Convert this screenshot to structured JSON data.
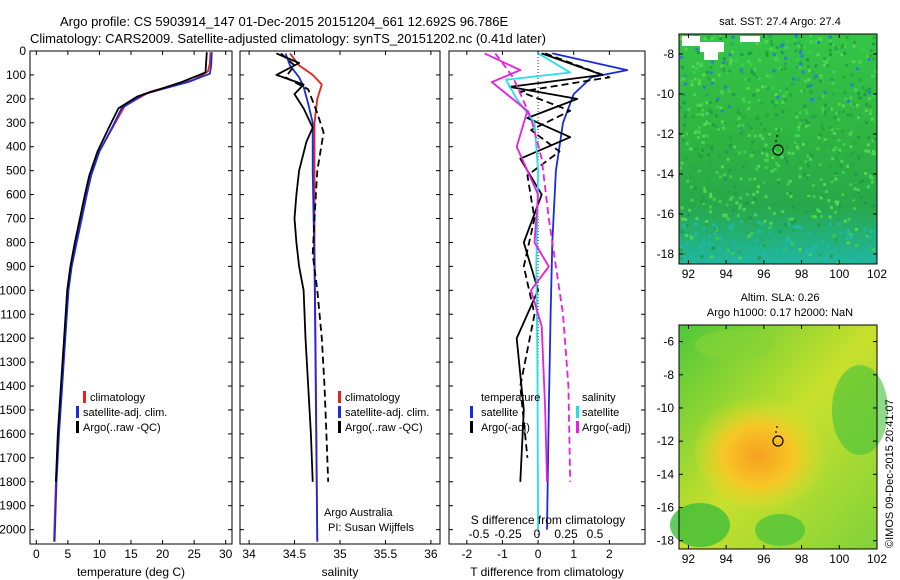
{
  "header": {
    "line1": "Argo profile: CS 5903914_147 01-Dec-2015 20151204_661 12.692S 96.786E",
    "line2": "Climatology: CARS2009. Satellite-adjusted climatology: synTS_20151202.nc (0.41d later)"
  },
  "colors": {
    "climatology": "#e8211b",
    "satellite": "#1a2bdb",
    "argo": "#000000",
    "satellite_s": "#22e0e8",
    "argo_s": "#e81ee0"
  },
  "depth_axis": {
    "ticks": [
      "0",
      "100",
      "200",
      "300",
      "400",
      "500",
      "600",
      "700",
      "800",
      "900",
      "1000",
      "1100",
      "1200",
      "1300",
      "1400",
      "1500",
      "1600",
      "1700",
      "1800",
      "1900",
      "2000"
    ],
    "ylim": [
      0,
      2060
    ]
  },
  "chart_data": [
    {
      "type": "line",
      "name": "temperature",
      "xlabel": "temperature (deg C)",
      "xlim": [
        -1,
        31
      ],
      "xticks": [
        "0",
        "5",
        "10",
        "15",
        "20",
        "25",
        "30"
      ],
      "legend": [
        "climatology",
        "satellite-adj. clim.",
        "Argo(..raw -QC)"
      ],
      "series": [
        {
          "name": "climatology",
          "style": "solid",
          "color": "climatology",
          "points": [
            [
              27.6,
              5
            ],
            [
              27.5,
              50
            ],
            [
              27.2,
              85
            ],
            [
              25,
              120
            ],
            [
              18,
              170
            ],
            [
              14,
              230
            ],
            [
              12.5,
              300
            ],
            [
              10,
              420
            ],
            [
              8.5,
              520
            ],
            [
              7.8,
              600
            ],
            [
              7,
              700
            ],
            [
              6.3,
              800
            ],
            [
              5.5,
              900
            ],
            [
              5,
              1000
            ],
            [
              4.5,
              1200
            ],
            [
              4,
              1400
            ],
            [
              3.5,
              1600
            ],
            [
              3.1,
              1800
            ],
            [
              2.8,
              2050
            ]
          ]
        },
        {
          "name": "satellite-adj. clim.",
          "style": "solid",
          "color": "satellite",
          "points": [
            [
              27.8,
              5
            ],
            [
              27.7,
              60
            ],
            [
              27.5,
              95
            ],
            [
              24,
              130
            ],
            [
              17,
              180
            ],
            [
              13.5,
              240
            ],
            [
              12,
              320
            ],
            [
              10,
              420
            ],
            [
              8.7,
              520
            ],
            [
              8,
              600
            ],
            [
              7.2,
              700
            ],
            [
              6.4,
              800
            ],
            [
              5.6,
              900
            ],
            [
              5.1,
              1000
            ],
            [
              4.6,
              1200
            ],
            [
              4.1,
              1400
            ],
            [
              3.6,
              1600
            ],
            [
              3.2,
              1800
            ],
            [
              2.9,
              2050
            ]
          ]
        },
        {
          "name": "Argo(..raw -QC)",
          "style": "solid",
          "color": "argo",
          "points": [
            [
              27,
              5
            ],
            [
              26.9,
              50
            ],
            [
              26.8,
              90
            ],
            [
              23,
              130
            ],
            [
              16,
              190
            ],
            [
              13,
              240
            ],
            [
              11.5,
              320
            ],
            [
              9.7,
              420
            ],
            [
              8.4,
              520
            ],
            [
              7.7,
              600
            ],
            [
              6.9,
              700
            ],
            [
              6.1,
              800
            ],
            [
              5.4,
              900
            ],
            [
              4.9,
              1000
            ],
            [
              4.4,
              1200
            ],
            [
              3.9,
              1400
            ],
            [
              3.4,
              1600
            ],
            [
              3.1,
              1800
            ]
          ]
        }
      ]
    },
    {
      "type": "line",
      "name": "salinity",
      "xlabel": "salinity",
      "xlim": [
        33.9,
        36.1
      ],
      "xticks": [
        "34",
        "34.5",
        "35",
        "35.5",
        "36"
      ],
      "legend": [
        "climatology",
        "satellite-adj. clim.",
        "Argo(..raw -QC)"
      ],
      "series": [
        {
          "name": "climatology",
          "style": "solid",
          "color": "climatology",
          "points": [
            [
              34.45,
              10
            ],
            [
              34.55,
              60
            ],
            [
              34.7,
              100
            ],
            [
              34.8,
              140
            ],
            [
              34.75,
              200
            ],
            [
              34.72,
              300
            ],
            [
              34.72,
              500
            ],
            [
              34.72,
              800
            ],
            [
              34.73,
              1200
            ],
            [
              34.74,
              1600
            ],
            [
              34.75,
              2050
            ]
          ]
        },
        {
          "name": "satellite-adj. clim.",
          "style": "solid",
          "color": "satellite",
          "points": [
            [
              34.4,
              10
            ],
            [
              34.45,
              60
            ],
            [
              34.55,
              110
            ],
            [
              34.6,
              150
            ],
            [
              34.65,
              220
            ],
            [
              34.7,
              300
            ],
            [
              34.7,
              500
            ],
            [
              34.72,
              900
            ],
            [
              34.73,
              1300
            ],
            [
              34.74,
              1700
            ],
            [
              34.75,
              2050
            ]
          ]
        },
        {
          "name": "Argo(..raw -QC)",
          "style": "solid",
          "color": "argo",
          "points": [
            [
              34.3,
              10
            ],
            [
              34.55,
              50
            ],
            [
              34.3,
              100
            ],
            [
              34.6,
              140
            ],
            [
              34.5,
              180
            ],
            [
              34.6,
              240
            ],
            [
              34.7,
              320
            ],
            [
              34.63,
              380
            ],
            [
              34.55,
              500
            ],
            [
              34.52,
              600
            ],
            [
              34.5,
              700
            ],
            [
              34.52,
              800
            ],
            [
              34.55,
              900
            ],
            [
              34.6,
              1000
            ],
            [
              34.62,
              1200
            ],
            [
              34.65,
              1400
            ],
            [
              34.68,
              1600
            ],
            [
              34.7,
              1800
            ]
          ]
        },
        {
          "name": "Argo(-adj)",
          "style": "dashed",
          "color": "argo",
          "points": [
            [
              34.35,
              10
            ],
            [
              34.5,
              60
            ],
            [
              34.4,
              110
            ],
            [
              34.65,
              160
            ],
            [
              34.75,
              260
            ],
            [
              34.82,
              340
            ],
            [
              34.75,
              500
            ],
            [
              34.72,
              700
            ],
            [
              34.7,
              850
            ],
            [
              34.75,
              1000
            ],
            [
              34.8,
              1200
            ],
            [
              34.83,
              1400
            ],
            [
              34.85,
              1600
            ],
            [
              34.87,
              1800
            ]
          ]
        }
      ]
    },
    {
      "type": "line",
      "name": "difference",
      "xlabel": "T difference from climatology",
      "xlabel2": "S difference from climatology",
      "xlim": [
        -2.5,
        3.0
      ],
      "xticks": [
        "-2",
        "-1",
        "0",
        "1",
        "2"
      ],
      "xticks_top": [
        "-0.5",
        "-0.25",
        "0",
        "0.25",
        "0.5"
      ],
      "legend_left": {
        "head": "temperature",
        "items": [
          "satellite",
          "Argo(-adj)"
        ]
      },
      "legend_right": {
        "head": "salinity",
        "items": [
          "satellite",
          "Argo(-adj)"
        ]
      },
      "series": [
        {
          "name": "T satellite",
          "style": "solid",
          "color": "satellite",
          "points": [
            [
              0.4,
              10
            ],
            [
              2.5,
              80
            ],
            [
              1.5,
              110
            ],
            [
              1.0,
              180
            ],
            [
              0.7,
              300
            ],
            [
              0.5,
              500
            ],
            [
              0.4,
              800
            ],
            [
              0.35,
              1100
            ],
            [
              0.3,
              1500
            ],
            [
              0.25,
              2000
            ]
          ]
        },
        {
          "name": "T Argo(-adj)",
          "style": "solid",
          "color": "argo",
          "points": [
            [
              0.1,
              10
            ],
            [
              1.8,
              100
            ],
            [
              -0.8,
              150
            ],
            [
              1.1,
              200
            ],
            [
              -0.3,
              280
            ],
            [
              0.9,
              360
            ],
            [
              -0.5,
              450
            ],
            [
              0.1,
              600
            ],
            [
              -0.4,
              800
            ],
            [
              0.0,
              1000
            ],
            [
              -0.6,
              1200
            ],
            [
              -0.4,
              1500
            ],
            [
              -0.5,
              1800
            ]
          ]
        },
        {
          "name": "T Argo dashed",
          "style": "dashed",
          "color": "argo",
          "points": [
            [
              0.2,
              10
            ],
            [
              2.0,
              110
            ],
            [
              -0.5,
              170
            ],
            [
              0.9,
              250
            ],
            [
              -0.2,
              330
            ],
            [
              0.6,
              420
            ],
            [
              -0.3,
              520
            ],
            [
              -0.1,
              700
            ],
            [
              -0.4,
              900
            ],
            [
              -0.1,
              1100
            ],
            [
              -0.5,
              1400
            ],
            [
              -0.3,
              1700
            ]
          ]
        },
        {
          "name": "S satellite",
          "style": "solid",
          "color": "satellite_s",
          "points": [
            [
              0.0,
              10
            ],
            [
              0.9,
              90
            ],
            [
              -0.9,
              120
            ],
            [
              -0.6,
              200
            ],
            [
              -0.1,
              300
            ],
            [
              0.0,
              500
            ],
            [
              -0.05,
              900
            ],
            [
              -0.02,
              1300
            ],
            [
              0.0,
              2000
            ]
          ]
        },
        {
          "name": "S Argo(-adj) solid",
          "style": "solid",
          "color": "argo_s",
          "points": [
            [
              -1.5,
              10
            ],
            [
              -0.5,
              80
            ],
            [
              -1.3,
              130
            ],
            [
              -0.3,
              250
            ],
            [
              -0.6,
              400
            ],
            [
              0.0,
              600
            ],
            [
              -0.1,
              800
            ],
            [
              0.3,
              900
            ],
            [
              -0.2,
              1000
            ],
            [
              0.1,
              1150
            ],
            [
              0.2,
              1500
            ],
            [
              0.25,
              1800
            ]
          ]
        },
        {
          "name": "S Argo(-adj) dashed",
          "style": "dashed",
          "color": "argo_s",
          "points": [
            [
              -1.2,
              10
            ],
            [
              -0.7,
              110
            ],
            [
              -0.2,
              280
            ],
            [
              0.1,
              450
            ],
            [
              0.3,
              700
            ],
            [
              0.5,
              900
            ],
            [
              0.7,
              1100
            ],
            [
              0.85,
              1400
            ],
            [
              0.9,
              1800
            ]
          ]
        }
      ]
    }
  ],
  "meta_text": {
    "owner": "Argo Australia",
    "pi": "PI: Susan Wijffels"
  },
  "maps": {
    "sst": {
      "title": "sat. SST: 27.4 Argo: 27.4",
      "yticks": [
        "-8",
        "-10",
        "-12",
        "-14",
        "-16",
        "-18"
      ],
      "xticks": [
        "92",
        "94",
        "96",
        "98",
        "100",
        "102"
      ]
    },
    "sla": {
      "title1": "Altim. SLA: 0.26",
      "title2": "Argo h1000: 0.17 h2000: NaN",
      "yticks": [
        "-6",
        "-8",
        "-10",
        "-12",
        "-14",
        "-16",
        "-18"
      ],
      "xticks": [
        "92",
        "94",
        "96",
        "98",
        "100",
        "102"
      ]
    }
  },
  "footer": "©IMOS 09-Dec-2015 20:41:07"
}
